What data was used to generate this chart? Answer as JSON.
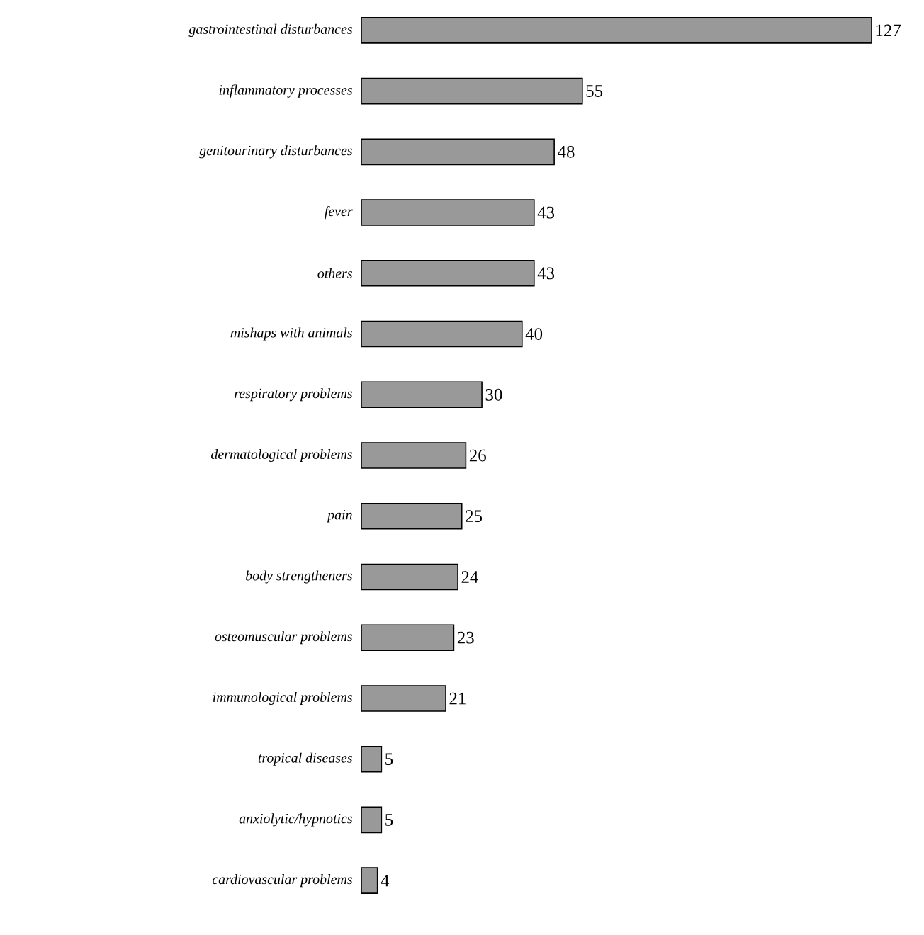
{
  "chart_data": {
    "type": "bar",
    "orientation": "horizontal",
    "color": "#999999",
    "data_labels": true,
    "categories": [
      "gastrointestinal disturbances",
      "inflammatory processes",
      "genitourinary disturbances",
      "fever",
      "others",
      "mishaps with animals",
      "respiratory problems",
      "dermatological problems",
      "pain",
      "body strengtheners",
      "osteomuscular problems",
      "immunological problems",
      "tropical diseases",
      "anxiolytic/hypnotics",
      "cardiovascular problems"
    ],
    "values": [
      127,
      55,
      48,
      43,
      43,
      40,
      30,
      26,
      25,
      24,
      23,
      21,
      5,
      5,
      4
    ]
  }
}
